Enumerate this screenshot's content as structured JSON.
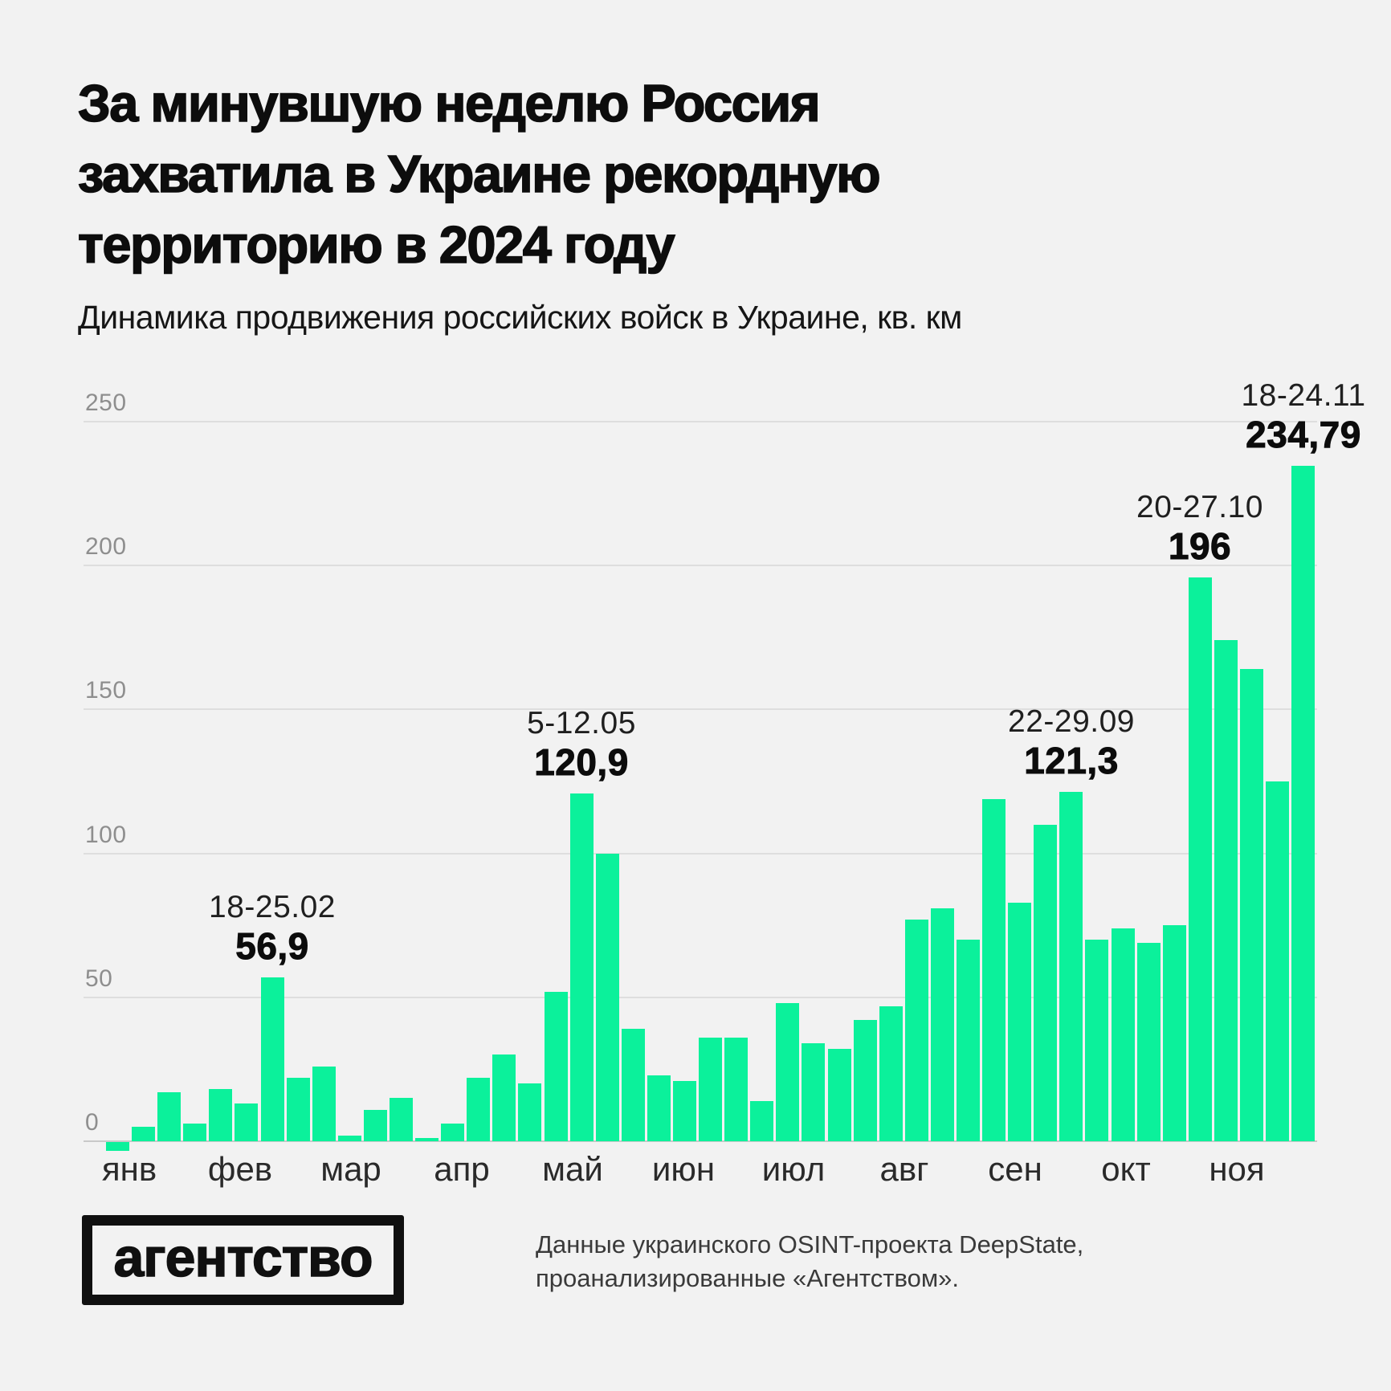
{
  "header": {
    "title_lines": [
      "За минувшую неделю Россия",
      "захватила в Украине рекордную",
      "территорию в 2024 году"
    ],
    "subtitle": "Динамика продвижения российских войск в Украине, кв. км"
  },
  "chart_data": {
    "type": "bar",
    "title": "За минувшую неделю Россия захватила в Украине рекордную территорию в 2024 году",
    "subtitle": "Динамика продвижения российских войск в Украине, кв. км",
    "xlabel": "",
    "ylabel": "кв. км",
    "categories_months": [
      "янв",
      "фев",
      "мар",
      "апр",
      "май",
      "июн",
      "июл",
      "авг",
      "сен",
      "окт",
      "ноя"
    ],
    "values": [
      -3,
      5,
      17,
      6,
      18,
      13,
      56.9,
      22,
      26,
      2,
      11,
      15,
      1,
      6,
      22,
      30,
      20,
      52,
      120.9,
      100,
      39,
      23,
      21,
      36,
      36,
      14,
      48,
      34,
      32,
      42,
      47,
      77,
      81,
      70,
      119,
      83,
      110,
      121.3,
      70,
      74,
      69,
      75,
      196,
      174,
      164,
      125,
      234.79
    ],
    "y_ticks": [
      0,
      50,
      100,
      150,
      200,
      250
    ],
    "ylim": [
      -10,
      250
    ],
    "grid": true,
    "legend": false,
    "annotations": [
      {
        "index": 6,
        "date": "18-25.02",
        "value": "56,9"
      },
      {
        "index": 18,
        "date": "5-12.05",
        "value": "120,9"
      },
      {
        "index": 37,
        "date": "22-29.09",
        "value": "121,3"
      },
      {
        "index": 42,
        "date": "20-27.10",
        "value": "196"
      },
      {
        "index": 46,
        "date": "18-24.11",
        "value": "234,79"
      }
    ]
  },
  "colors": {
    "background": "#F2F2F2",
    "bar": "#0BF19B",
    "gridline": "#DEDEDE",
    "baseline": "#C9C9C9",
    "axis_label": "#8E8E8E",
    "text": "#0D0D0D"
  },
  "footer": {
    "logo": "агентство",
    "source_lines": [
      "Данные украинского OSINT-проекта DeepState,",
      "проанализированные «Агентством»."
    ]
  }
}
